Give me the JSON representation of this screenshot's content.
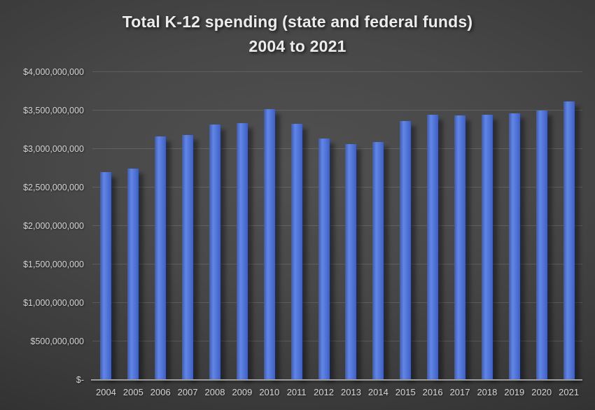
{
  "title": {
    "line1": "Total K-12 spending (state and federal funds)",
    "line2": "2004 to 2021"
  },
  "chart_data": {
    "type": "bar",
    "title": "Total K-12 spending (state and federal funds) 2004 to 2021",
    "categories": [
      "2004",
      "2005",
      "2006",
      "2007",
      "2008",
      "2009",
      "2010",
      "2011",
      "2012",
      "2013",
      "2014",
      "2015",
      "2016",
      "2017",
      "2018",
      "2019",
      "2020",
      "2021"
    ],
    "values": [
      2700000000,
      2750000000,
      3160000000,
      3180000000,
      3320000000,
      3340000000,
      3520000000,
      3330000000,
      3140000000,
      3060000000,
      3090000000,
      3360000000,
      3450000000,
      3440000000,
      3450000000,
      3460000000,
      3500000000,
      3620000000
    ],
    "xlabel": "",
    "ylabel": "",
    "ylim": [
      0,
      4000000000
    ],
    "ytick_interval": 500000000,
    "ytick_labels": [
      "$-",
      "$500,000,000",
      "$1,000,000,000",
      "$1,500,000,000",
      "$2,000,000,000",
      "$2,500,000,000",
      "$3,000,000,000",
      "$3,500,000,000",
      "$4,000,000,000"
    ],
    "grid": true,
    "legend": false,
    "bar_color": "#4472C4",
    "background_color": "#3a3a3a",
    "text_color": "#d4d4d4"
  }
}
